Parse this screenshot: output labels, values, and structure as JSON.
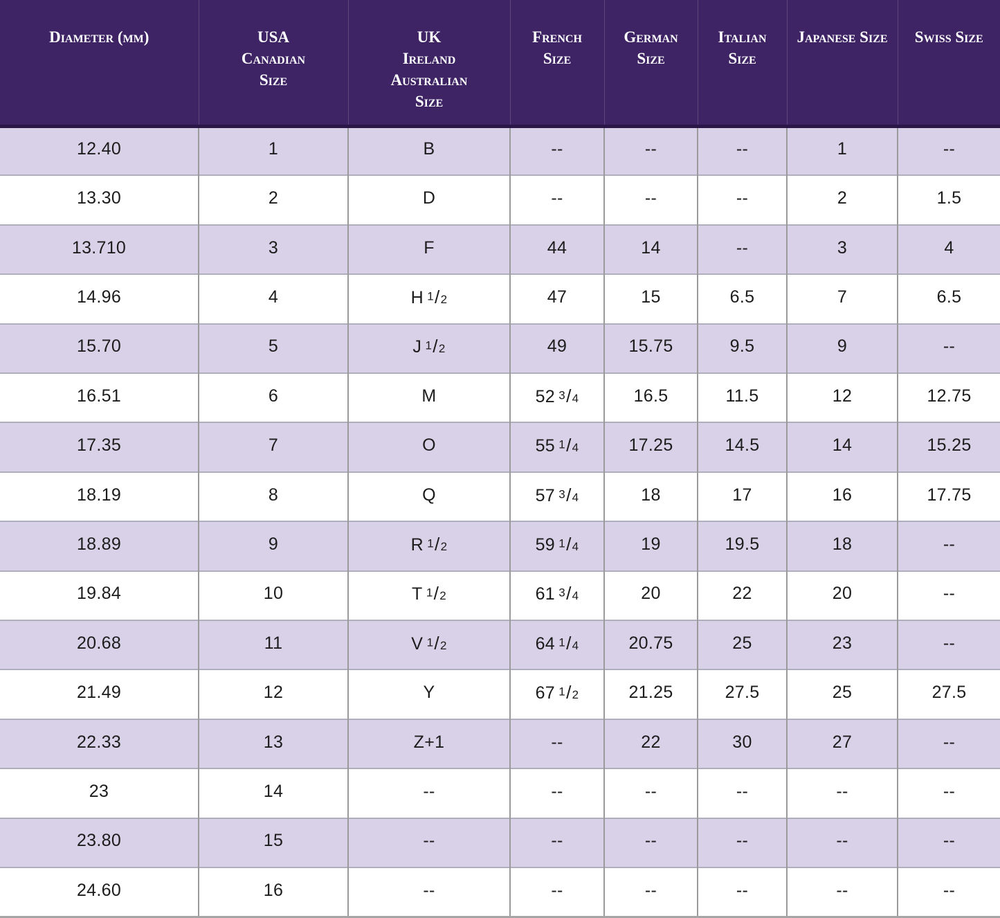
{
  "colors": {
    "header_bg": "#3e2465",
    "header_divider": "#2b1747",
    "header_text": "#ffffff",
    "row_bg": "#ffffff",
    "row_alt_bg": "#d8d1e7",
    "grid_vertical": "#9a9a9a",
    "grid_horizontal": "#aeaebc",
    "body_text": "#1c1c1c",
    "bottom_border": "#a5a5a5"
  },
  "chart_data": {
    "type": "table",
    "columns": [
      {
        "id": "diameter",
        "lines": [
          "Diameter (mm)"
        ]
      },
      {
        "id": "usa",
        "lines": [
          "USA",
          "Canadian",
          "Size"
        ]
      },
      {
        "id": "uk",
        "lines": [
          "UK",
          "Ireland",
          "Australian",
          "Size"
        ]
      },
      {
        "id": "french",
        "lines": [
          "French",
          "Size"
        ]
      },
      {
        "id": "german",
        "lines": [
          "German",
          "Size"
        ]
      },
      {
        "id": "italian",
        "lines": [
          "Italian",
          "Size"
        ]
      },
      {
        "id": "japanese",
        "lines": [
          "Japanese Size"
        ]
      },
      {
        "id": "swiss",
        "lines": [
          "Swiss Size"
        ]
      }
    ],
    "rows": [
      [
        "12.40",
        "1",
        "B",
        "--",
        "--",
        "--",
        "1",
        "--"
      ],
      [
        "13.30",
        "2",
        "D",
        "--",
        "--",
        "--",
        "2",
        "1.5"
      ],
      [
        "13.710",
        "3",
        "F",
        "44",
        "14",
        "--",
        "3",
        "4"
      ],
      [
        "14.96",
        "4",
        "H 1/2",
        "47",
        "15",
        "6.5",
        "7",
        "6.5"
      ],
      [
        "15.70",
        "5",
        "J 1/2",
        "49",
        "15.75",
        "9.5",
        "9",
        "--"
      ],
      [
        "16.51",
        "6",
        "M",
        "52 3/4",
        "16.5",
        "11.5",
        "12",
        "12.75"
      ],
      [
        "17.35",
        "7",
        "O",
        "55 1/4",
        "17.25",
        "14.5",
        "14",
        "15.25"
      ],
      [
        "18.19",
        "8",
        "Q",
        "57 3/4",
        "18",
        "17",
        "16",
        "17.75"
      ],
      [
        "18.89",
        "9",
        "R 1/2",
        "59 1/4",
        "19",
        "19.5",
        "18",
        "--"
      ],
      [
        "19.84",
        "10",
        "T 1/2",
        "61 3/4",
        "20",
        "22",
        "20",
        "--"
      ],
      [
        "20.68",
        "11",
        "V 1/2",
        "64 1/4",
        "20.75",
        "25",
        "23",
        "--"
      ],
      [
        "21.49",
        "12",
        "Y",
        "67 1/2",
        "21.25",
        "27.5",
        "25",
        "27.5"
      ],
      [
        "22.33",
        "13",
        "Z+1",
        "--",
        "22",
        "30",
        "27",
        "--"
      ],
      [
        "23",
        "14",
        "--",
        "--",
        "--",
        "--",
        "--",
        "--"
      ],
      [
        "23.80",
        "15",
        "--",
        "--",
        "--",
        "--",
        "--",
        "--"
      ],
      [
        "24.60",
        "16",
        "--",
        "--",
        "--",
        "--",
        "--",
        "--"
      ]
    ]
  }
}
